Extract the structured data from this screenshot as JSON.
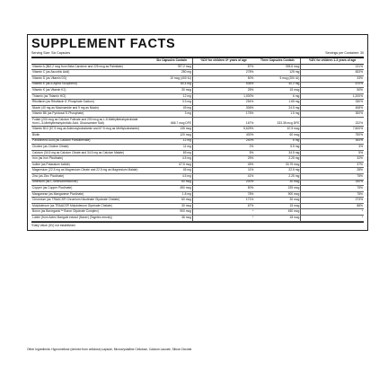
{
  "header": {
    "title": "SUPPLEMENT FACTS",
    "serving_size": "Serving Size: Six Capsules",
    "servings_per_container": "Servings per Container: 30"
  },
  "columns": [
    "Six Capsules Contain",
    "%DV for children 4+ years of age",
    "Three Capsules Contain",
    "%DV for children 1-3 years of age"
  ],
  "rows": [
    [
      "Vitamin A (562.2 mcg from Beta Carotene and 225 mcg as Palmitate)",
      "787.2 mcg",
      "87%",
      "393.6 mcg",
      "131%"
    ],
    [
      "Vitamin C (as Ascorbic Acid)",
      "250 mg",
      "278%",
      "125 mg",
      "833%"
    ],
    [
      "Vitamin D (as Vitamin D3)",
      "10 mcg (400 IU)",
      "50%",
      "5 mcg (200 IU)",
      "33%"
    ],
    [
      "Vitamin E (as d-Alpha Tocopherol)",
      "80.4 mg",
      "536%",
      "40.2 mg",
      "670%"
    ],
    [
      "Vitamin K (as Vitamin K1)",
      "30 mcg",
      "25%",
      "15 mcg",
      "50%"
    ],
    [
      "Thiamin (as Thiamin HCl)",
      "12 mg",
      "1,000%",
      "6 mg",
      "1,200%"
    ],
    [
      "Riboflavin (as Riboflavin 5'-Phosphate Sodium)",
      "3.3 mg",
      "254%",
      "1.65 mg",
      "330%"
    ],
    [
      "Niacin (40 mg as Niacinamide and 9 mg as Niacin)",
      "49 mg",
      "306%",
      "24.5 mg",
      "408%"
    ],
    [
      "Vitamin B6 (as Pyridoxal 5'-Phosphate)",
      "3 mg",
      "176%",
      "1.5 mg",
      "300%"
    ],
    [
      "Folate (200 mcg as Calcium Folinate and 200 mcg as L-5-Methyltetrahydrofolate from L-5-Methyltetrahydrofolic Acid, Glucosamine Salt)",
      "666.7 mcg DFE",
      "167%",
      "333.35 mcg DFE",
      "222%"
    ],
    [
      "Vitamin B12 (67.5 mcg as Adenosylcobalamin and 67.5 mcg as Methylcobalamin)",
      "135 mcg",
      "5,625%",
      "67.5 mcg",
      "7,500%"
    ],
    [
      "Biotin",
      "120 mcg",
      "400%",
      "60 mcg",
      "750%"
    ],
    [
      "Pantothenic Acid (as Calcium Pantothenate)",
      "12 mg",
      "240%",
      "6 mg",
      "300%"
    ],
    [
      "Choline (as Choline Citrate)",
      "11 mg",
      "2%",
      "5.5 mg",
      "3%"
    ],
    [
      "Calcium (34.5 mg as Calcium Citrate and 34.5 mg as Calcium Malate)",
      "69 mg",
      "5%",
      "34.5 mg",
      "5%"
    ],
    [
      "Iron (as Iron Picolinate)",
      "4.5 mg",
      "25%",
      "2.25 mg",
      "32%"
    ],
    [
      "Iodine (as Potassium Iodide)",
      "67.5 mcg",
      "45%",
      "33.75 mcg",
      "37%"
    ],
    [
      "Magnesium (22.5 mg as Magnesium Citrate and 22.5 mg as Magnesium Malate)",
      "45 mg",
      "11%",
      "22.5 mg",
      "28%"
    ],
    [
      "Zinc (as Zinc Picolinate)",
      "4.5 mg",
      "41%",
      "2.25 mg",
      "75%"
    ],
    [
      "Selenium (as L-Selenomethionine)",
      "60 mcg",
      "200%",
      "30 mcg",
      "150%"
    ],
    [
      "Copper (as Copper Picolinate)",
      "450 mcg",
      "50%",
      "225 mcg",
      "75%"
    ],
    [
      "Manganese (as Manganese Picolinate)",
      "1.8 mg",
      "78%",
      "900 mcg",
      "75%"
    ],
    [
      "Chromium (as TRAACS® Chromium Nicotinate Glycinate Chelate)",
      "60 mcg",
      "171%",
      "30 mcg",
      "273%"
    ],
    [
      "Molybdenum (as TRAACS® Molybdenum Glycinate Chelate)",
      "30 mcg",
      "67%",
      "15 mcg",
      "88%"
    ],
    [
      "Boron (as Bororganic™ Boron Glycinate Complex)",
      "900 mcg",
      "*",
      "450 mcg",
      "*"
    ],
    [
      "Lutein (from Aztec Marigold extract (flower) (Tagetes erecta))",
      "36 mcg",
      "*",
      "18 mcg",
      "*"
    ]
  ],
  "footnote": "*Daily Value (DV) not established.",
  "other_ingredients": "Other Ingredients: Hypromellose (derived from cellulose) capsule, Microcrystalline Cellulose, Calcium Laurate, Silicon Dioxide."
}
